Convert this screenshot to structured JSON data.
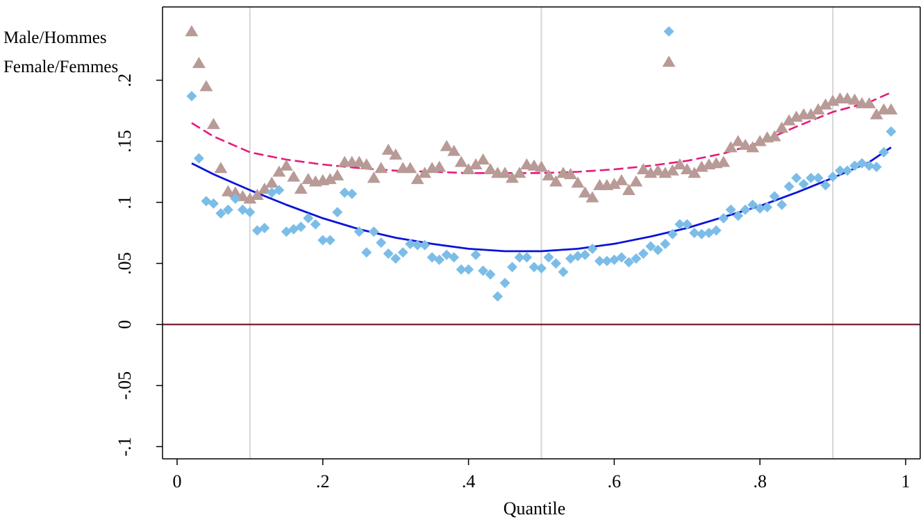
{
  "chart_data": {
    "type": "scatter",
    "xlabel": "Quantile",
    "ylabel": "",
    "xlim": [
      -0.02,
      1.02
    ],
    "ylim": [
      -0.11,
      0.26
    ],
    "x_ticks": [
      0,
      0.2,
      0.4,
      0.6,
      0.8,
      1
    ],
    "x_tick_labels": [
      "0",
      ".2",
      ".4",
      ".6",
      ".8",
      "1"
    ],
    "y_ticks": [
      -0.1,
      -0.05,
      0,
      0.05,
      0.1,
      0.15,
      0.2
    ],
    "y_tick_labels": [
      "-.1",
      "-.05",
      "0",
      ".05",
      ".1",
      ".15",
      ".2"
    ],
    "vertical_reference_lines": [
      0.1,
      0.5,
      0.9
    ],
    "zero_line": 0,
    "legend": {
      "placement": "top-right",
      "entries": [
        {
          "label": "Male/Hommes",
          "marker": "diamond",
          "color": "#7cbde8"
        },
        {
          "label": "Female/Femmes",
          "marker": "triangle",
          "color": "#b89a96"
        }
      ]
    },
    "colors": {
      "male_points": "#7cbde8",
      "female_points": "#b89a96",
      "male_fit": "#0a14d8",
      "female_fit": "#e8197a",
      "zero_line": "#6b0f1e",
      "ref_lines": "#d9d9d9"
    },
    "series": [
      {
        "name": "Male/Hommes",
        "kind": "points",
        "marker": "diamond",
        "x": [
          0.02,
          0.03,
          0.04,
          0.05,
          0.06,
          0.07,
          0.08,
          0.09,
          0.1,
          0.11,
          0.12,
          0.13,
          0.14,
          0.15,
          0.16,
          0.17,
          0.18,
          0.19,
          0.2,
          0.21,
          0.22,
          0.23,
          0.24,
          0.25,
          0.26,
          0.27,
          0.28,
          0.29,
          0.3,
          0.31,
          0.32,
          0.33,
          0.34,
          0.35,
          0.36,
          0.37,
          0.38,
          0.39,
          0.4,
          0.41,
          0.42,
          0.43,
          0.44,
          0.45,
          0.46,
          0.47,
          0.48,
          0.49,
          0.5,
          0.51,
          0.52,
          0.53,
          0.54,
          0.55,
          0.56,
          0.57,
          0.58,
          0.59,
          0.6,
          0.61,
          0.62,
          0.63,
          0.64,
          0.65,
          0.66,
          0.67,
          0.68,
          0.69,
          0.7,
          0.71,
          0.72,
          0.73,
          0.74,
          0.75,
          0.76,
          0.77,
          0.78,
          0.79,
          0.8,
          0.81,
          0.82,
          0.83,
          0.84,
          0.85,
          0.86,
          0.87,
          0.88,
          0.89,
          0.9,
          0.91,
          0.92,
          0.93,
          0.94,
          0.95,
          0.96,
          0.97,
          0.98
        ],
        "y": [
          0.187,
          0.136,
          0.101,
          0.099,
          0.091,
          0.094,
          0.103,
          0.094,
          0.092,
          0.077,
          0.079,
          0.108,
          0.11,
          0.076,
          0.078,
          0.08,
          0.087,
          0.082,
          0.069,
          0.069,
          0.092,
          0.108,
          0.107,
          0.076,
          0.059,
          0.076,
          0.067,
          0.058,
          0.054,
          0.059,
          0.066,
          0.065,
          0.065,
          0.055,
          0.053,
          0.057,
          0.055,
          0.045,
          0.045,
          0.057,
          0.044,
          0.041,
          0.023,
          0.034,
          0.047,
          0.055,
          0.055,
          0.047,
          0.046,
          0.055,
          0.05,
          0.043,
          0.054,
          0.056,
          0.057,
          0.062,
          0.052,
          0.052,
          0.053,
          0.055,
          0.051,
          0.054,
          0.058,
          0.064,
          0.061,
          0.066,
          0.074,
          0.082,
          0.082,
          0.075,
          0.074,
          0.075,
          0.077,
          0.087,
          0.094,
          0.089,
          0.094,
          0.098,
          0.095,
          0.096,
          0.105,
          0.098,
          0.113,
          0.12,
          0.115,
          0.12,
          0.12,
          0.114,
          0.121,
          0.126,
          0.126,
          0.13,
          0.132,
          0.13,
          0.129,
          0.141,
          0.158
        ]
      },
      {
        "name": "Female/Femmes",
        "kind": "points",
        "marker": "triangle",
        "x": [
          0.02,
          0.03,
          0.04,
          0.05,
          0.06,
          0.07,
          0.08,
          0.09,
          0.1,
          0.11,
          0.12,
          0.13,
          0.14,
          0.15,
          0.16,
          0.17,
          0.18,
          0.19,
          0.2,
          0.21,
          0.22,
          0.23,
          0.24,
          0.25,
          0.26,
          0.27,
          0.28,
          0.29,
          0.3,
          0.31,
          0.32,
          0.33,
          0.34,
          0.35,
          0.36,
          0.37,
          0.38,
          0.39,
          0.4,
          0.41,
          0.42,
          0.43,
          0.44,
          0.45,
          0.46,
          0.47,
          0.48,
          0.49,
          0.5,
          0.51,
          0.52,
          0.53,
          0.54,
          0.55,
          0.56,
          0.57,
          0.58,
          0.59,
          0.6,
          0.61,
          0.62,
          0.63,
          0.64,
          0.65,
          0.66,
          0.67,
          0.68,
          0.69,
          0.7,
          0.71,
          0.72,
          0.73,
          0.74,
          0.75,
          0.76,
          0.77,
          0.78,
          0.79,
          0.8,
          0.81,
          0.82,
          0.83,
          0.84,
          0.85,
          0.86,
          0.87,
          0.88,
          0.89,
          0.9,
          0.91,
          0.92,
          0.93,
          0.94,
          0.95,
          0.96,
          0.97,
          0.98
        ],
        "y": [
          0.24,
          0.214,
          0.195,
          0.164,
          0.128,
          0.109,
          0.108,
          0.105,
          0.103,
          0.106,
          0.111,
          0.116,
          0.125,
          0.13,
          0.121,
          0.111,
          0.119,
          0.117,
          0.118,
          0.119,
          0.122,
          0.133,
          0.133,
          0.133,
          0.131,
          0.12,
          0.128,
          0.143,
          0.139,
          0.128,
          0.128,
          0.119,
          0.124,
          0.128,
          0.129,
          0.146,
          0.142,
          0.133,
          0.127,
          0.131,
          0.135,
          0.127,
          0.124,
          0.124,
          0.12,
          0.124,
          0.131,
          0.13,
          0.129,
          0.122,
          0.117,
          0.124,
          0.123,
          0.116,
          0.108,
          0.104,
          0.114,
          0.114,
          0.115,
          0.118,
          0.11,
          0.117,
          0.127,
          0.124,
          0.126,
          0.124,
          0.126,
          0.131,
          0.127,
          0.124,
          0.129,
          0.131,
          0.132,
          0.133,
          0.145,
          0.15,
          0.147,
          0.145,
          0.15,
          0.153,
          0.154,
          0.161,
          0.167,
          0.17,
          0.172,
          0.172,
          0.176,
          0.18,
          0.183,
          0.185,
          0.185,
          0.184,
          0.181,
          0.181,
          0.172,
          0.176,
          0.176
        ]
      },
      {
        "name": "Male/Hommes fit",
        "kind": "line",
        "style": "solid",
        "x": [
          0.02,
          0.05,
          0.1,
          0.15,
          0.2,
          0.25,
          0.3,
          0.35,
          0.4,
          0.45,
          0.5,
          0.55,
          0.6,
          0.65,
          0.7,
          0.75,
          0.8,
          0.85,
          0.9,
          0.95,
          0.98
        ],
        "y": [
          0.132,
          0.123,
          0.11,
          0.098,
          0.087,
          0.078,
          0.071,
          0.066,
          0.062,
          0.06,
          0.06,
          0.062,
          0.066,
          0.072,
          0.079,
          0.088,
          0.097,
          0.108,
          0.12,
          0.133,
          0.145
        ]
      },
      {
        "name": "Female/Femmes fit",
        "kind": "line",
        "style": "dashed",
        "x": [
          0.02,
          0.05,
          0.1,
          0.15,
          0.2,
          0.25,
          0.3,
          0.35,
          0.4,
          0.45,
          0.5,
          0.55,
          0.6,
          0.65,
          0.7,
          0.75,
          0.8,
          0.85,
          0.9,
          0.95,
          0.98
        ],
        "y": [
          0.165,
          0.154,
          0.141,
          0.135,
          0.131,
          0.128,
          0.126,
          0.125,
          0.124,
          0.124,
          0.124,
          0.125,
          0.127,
          0.13,
          0.134,
          0.14,
          0.149,
          0.162,
          0.174,
          0.182,
          0.19
        ]
      }
    ],
    "outlier_points": [
      {
        "series": "Male/Hommes",
        "marker": "diamond",
        "x": 0.675,
        "y": 0.24
      },
      {
        "series": "Female/Femmes",
        "marker": "triangle",
        "x": 0.675,
        "y": 0.215
      }
    ]
  }
}
